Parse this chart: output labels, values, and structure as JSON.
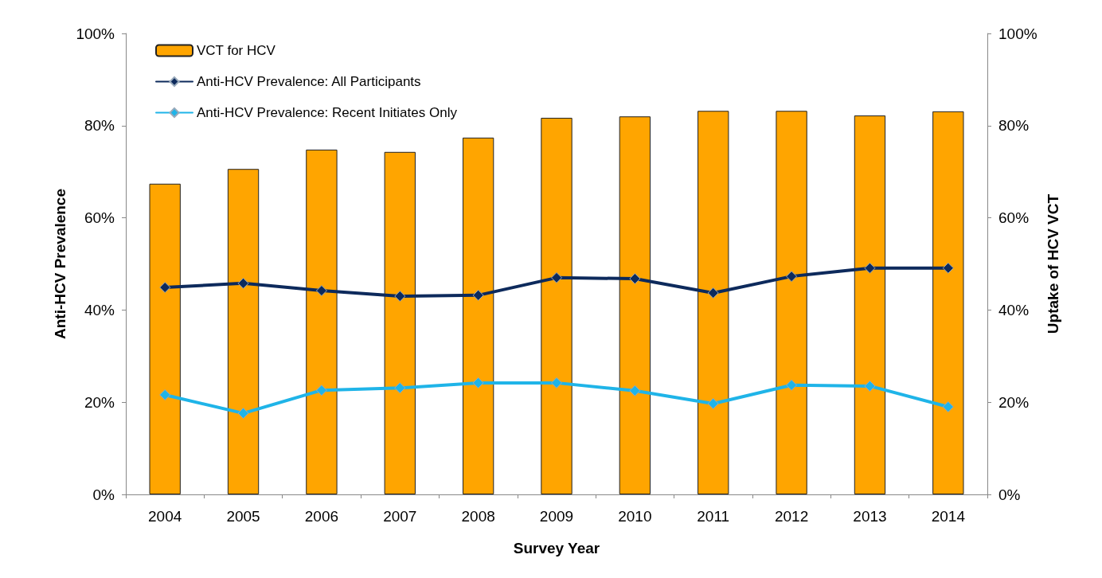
{
  "chart_data": {
    "type": "bar",
    "xlabel": "Survey Year",
    "ylabel": "Anti-HCV Prevalence",
    "y2label": "Uptake of HCV VCT",
    "categories": [
      "2004",
      "2005",
      "2006",
      "2007",
      "2008",
      "2009",
      "2010",
      "2011",
      "2012",
      "2013",
      "2014"
    ],
    "series": [
      {
        "name": "VCT for HCV",
        "axis": "y2",
        "color": "#ffa500",
        "values": [
          67.4,
          70.6,
          74.8,
          74.3,
          77.4,
          81.7,
          82.0,
          83.2,
          83.2,
          82.2,
          83.1
        ]
      },
      {
        "name": "Anti-HCV Prevalence: All Participants",
        "type": "line",
        "color": "#0d2a5c",
        "values": [
          44.9,
          45.8,
          44.2,
          43.0,
          43.2,
          47.0,
          46.8,
          43.7,
          47.3,
          49.1,
          49.1
        ]
      },
      {
        "name": "Anti-HCV Prevalence: Recent Initiates Only",
        "type": "line",
        "color": "#1fb4e8",
        "values": [
          21.6,
          17.6,
          22.6,
          23.1,
          24.2,
          24.2,
          22.5,
          19.7,
          23.7,
          23.5,
          19.0
        ]
      }
    ],
    "ylim": [
      0,
      100
    ],
    "yticks": [
      {
        "value": 0,
        "label": "0%"
      },
      {
        "value": 20,
        "label": "20%"
      },
      {
        "value": 40,
        "label": "40%"
      },
      {
        "value": 60,
        "label": "60%"
      },
      {
        "value": 80,
        "label": "80%"
      },
      {
        "value": 100,
        "label": "100%"
      }
    ],
    "y2lim": [
      0,
      100
    ],
    "y2ticks": [
      {
        "value": 0,
        "label": "0%"
      },
      {
        "value": 20,
        "label": "20%"
      },
      {
        "value": 40,
        "label": "40%"
      },
      {
        "value": 60,
        "label": "60%"
      },
      {
        "value": 80,
        "label": "80%"
      },
      {
        "value": 100,
        "label": "100%"
      }
    ],
    "legend": "top left",
    "marker": "diamond",
    "line_style": "solid",
    "grid": false
  }
}
